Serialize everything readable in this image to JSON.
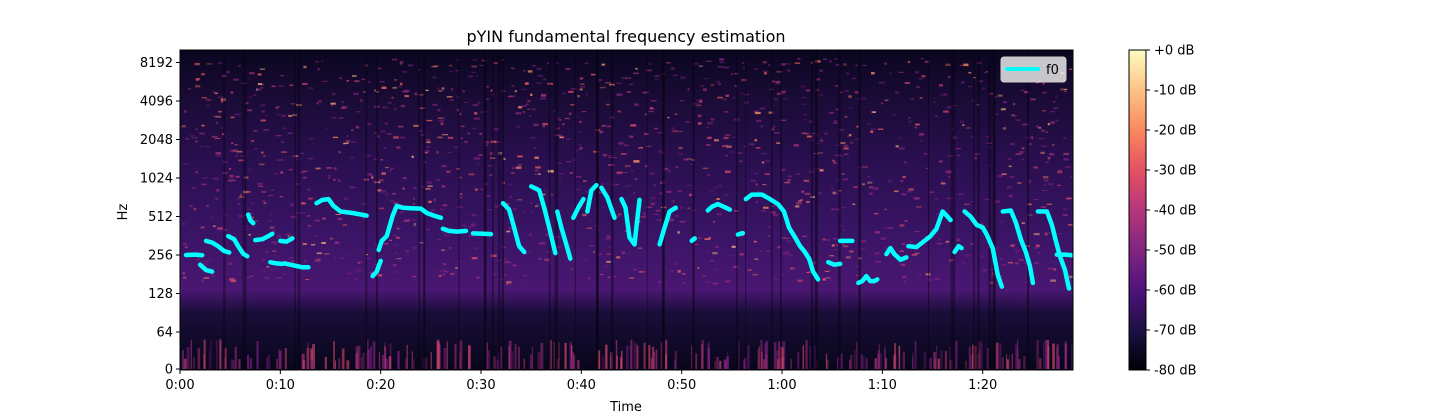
{
  "chart_data": {
    "type": "spectrogram",
    "title": "pYIN fundamental frequency estimation",
    "xlabel": "Time",
    "ylabel": "Hz",
    "xlim": [
      0,
      89
    ],
    "y_scale": "log (symmetric, linear near 0)",
    "x_ticks": [
      {
        "value": 0,
        "label": "0:00"
      },
      {
        "value": 10,
        "label": "0:10"
      },
      {
        "value": 20,
        "label": "0:20"
      },
      {
        "value": 30,
        "label": "0:30"
      },
      {
        "value": 40,
        "label": "0:40"
      },
      {
        "value": 50,
        "label": "0:50"
      },
      {
        "value": 60,
        "label": "1:00"
      },
      {
        "value": 70,
        "label": "1:10"
      },
      {
        "value": 80,
        "label": "1:20"
      }
    ],
    "y_ticks": [
      {
        "value": 0,
        "label": "0"
      },
      {
        "value": 64,
        "label": "64"
      },
      {
        "value": 128,
        "label": "128"
      },
      {
        "value": 256,
        "label": "256"
      },
      {
        "value": 512,
        "label": "512"
      },
      {
        "value": 1024,
        "label": "1024"
      },
      {
        "value": 2048,
        "label": "2048"
      },
      {
        "value": 4096,
        "label": "4096"
      },
      {
        "value": 8192,
        "label": "8192"
      }
    ],
    "colormap": "magma",
    "colorbar": {
      "range_db": [
        -80,
        0
      ],
      "ticks": [
        {
          "value": 0,
          "label": "+0 dB"
        },
        {
          "value": -10,
          "label": "-10 dB"
        },
        {
          "value": -20,
          "label": "-20 dB"
        },
        {
          "value": -30,
          "label": "-30 dB"
        },
        {
          "value": -40,
          "label": "-40 dB"
        },
        {
          "value": -50,
          "label": "-50 dB"
        },
        {
          "value": -60,
          "label": "-60 dB"
        },
        {
          "value": -70,
          "label": "-70 dB"
        },
        {
          "value": -80,
          "label": "-80 dB"
        }
      ]
    },
    "legend": {
      "placement": "top-right",
      "entries": [
        {
          "label": "f0",
          "color": "#00ffff"
        }
      ]
    },
    "series": [
      {
        "name": "f0",
        "color": "#00ffff",
        "segments": [
          [
            [
              0.6,
              256
            ],
            [
              1.5,
              258
            ],
            [
              2.2,
              255
            ]
          ],
          [
            [
              2.0,
              215
            ],
            [
              2.6,
              195
            ],
            [
              3.2,
              190
            ]
          ],
          [
            [
              2.6,
              330
            ],
            [
              3.2,
              320
            ],
            [
              3.8,
              300
            ],
            [
              4.4,
              275
            ],
            [
              4.9,
              268
            ]
          ],
          [
            [
              4.8,
              360
            ],
            [
              5.4,
              340
            ],
            [
              5.8,
              300
            ],
            [
              6.3,
              262
            ],
            [
              6.7,
              250
            ]
          ],
          [
            [
              6.8,
              530
            ],
            [
              7.0,
              480
            ],
            [
              7.3,
              455
            ]
          ],
          [
            [
              7.5,
              335
            ],
            [
              8.2,
              340
            ],
            [
              8.8,
              360
            ],
            [
              9.2,
              375
            ]
          ],
          [
            [
              9.0,
              225
            ],
            [
              9.6,
              220
            ],
            [
              10.2,
              218
            ]
          ],
          [
            [
              10.0,
              330
            ],
            [
              10.6,
              325
            ],
            [
              11.2,
              345
            ]
          ],
          [
            [
              10.4,
              220
            ],
            [
              11.0,
              215
            ],
            [
              11.6,
              210
            ],
            [
              12.2,
              205
            ],
            [
              12.8,
              205
            ]
          ],
          [
            [
              13.6,
              650
            ],
            [
              14.2,
              690
            ],
            [
              14.8,
              700
            ],
            [
              15.3,
              620
            ],
            [
              16.0,
              560
            ],
            [
              17.2,
              545
            ],
            [
              18.6,
              520
            ]
          ],
          [
            [
              19.2,
              175
            ],
            [
              19.6,
              190
            ],
            [
              20.0,
              230
            ]
          ],
          [
            [
              19.8,
              280
            ],
            [
              20.1,
              330
            ],
            [
              20.6,
              360
            ],
            [
              21.2,
              520
            ],
            [
              21.6,
              620
            ],
            [
              22.2,
              600
            ],
            [
              23.0,
              595
            ],
            [
              24.0,
              590
            ],
            [
              24.6,
              545
            ],
            [
              25.3,
              520
            ],
            [
              26.0,
              500
            ]
          ],
          [
            [
              26.2,
              410
            ],
            [
              26.8,
              395
            ],
            [
              27.6,
              390
            ],
            [
              28.5,
              395
            ]
          ],
          [
            [
              29.2,
              378
            ],
            [
              30.2,
              375
            ],
            [
              31.0,
              373
            ]
          ],
          [
            [
              32.2,
              650
            ],
            [
              32.8,
              580
            ],
            [
              33.3,
              420
            ],
            [
              33.8,
              300
            ],
            [
              34.3,
              270
            ]
          ],
          [
            [
              35.0,
              880
            ],
            [
              35.8,
              820
            ],
            [
              36.3,
              600
            ],
            [
              36.8,
              420
            ],
            [
              37.4,
              265
            ]
          ],
          [
            [
              37.6,
              560
            ],
            [
              38.0,
              420
            ],
            [
              38.5,
              310
            ],
            [
              38.9,
              240
            ]
          ],
          [
            [
              39.2,
              500
            ],
            [
              39.7,
              600
            ],
            [
              40.2,
              700
            ]
          ],
          [
            [
              40.6,
              560
            ],
            [
              41.0,
              820
            ],
            [
              41.5,
              900
            ]
          ],
          [
            [
              42.0,
              860
            ],
            [
              42.6,
              720
            ],
            [
              43.3,
              500
            ]
          ],
          [
            [
              44.0,
              700
            ],
            [
              44.4,
              600
            ],
            [
              44.8,
              350
            ],
            [
              45.3,
              310
            ],
            [
              45.8,
              690
            ]
          ],
          [
            [
              47.8,
              310
            ],
            [
              48.3,
              420
            ],
            [
              48.8,
              560
            ],
            [
              49.4,
              600
            ]
          ],
          [
            [
              51.0,
              330
            ],
            [
              51.3,
              345
            ]
          ],
          [
            [
              52.6,
              570
            ],
            [
              53.0,
              610
            ],
            [
              53.6,
              640
            ],
            [
              54.2,
              610
            ],
            [
              54.8,
              580
            ]
          ],
          [
            [
              55.6,
              370
            ],
            [
              56.1,
              380
            ]
          ],
          [
            [
              56.4,
              700
            ],
            [
              57.0,
              760
            ],
            [
              58.0,
              760
            ],
            [
              58.8,
              700
            ],
            [
              59.6,
              640
            ],
            [
              60.2,
              560
            ],
            [
              60.7,
              420
            ],
            [
              61.4,
              340
            ],
            [
              61.8,
              300
            ],
            [
              62.2,
              275
            ],
            [
              62.7,
              240
            ],
            [
              63.1,
              190
            ],
            [
              63.6,
              165
            ]
          ],
          [
            [
              64.6,
              225
            ],
            [
              65.2,
              215
            ],
            [
              65.8,
              218
            ]
          ],
          [
            [
              65.8,
              330
            ],
            [
              66.4,
              330
            ],
            [
              67.0,
              330
            ]
          ],
          [
            [
              67.6,
              155
            ],
            [
              68.0,
              160
            ],
            [
              68.4,
              175
            ],
            [
              68.8,
              160
            ],
            [
              69.2,
              160
            ],
            [
              69.5,
              165
            ]
          ],
          [
            [
              70.4,
              260
            ],
            [
              70.8,
              290
            ],
            [
              71.2,
              260
            ],
            [
              71.8,
              235
            ],
            [
              72.4,
              245
            ]
          ],
          [
            [
              72.6,
              300
            ],
            [
              73.4,
              295
            ],
            [
              74.2,
              330
            ],
            [
              74.8,
              360
            ],
            [
              75.4,
              410
            ],
            [
              76.0,
              560
            ],
            [
              76.4,
              520
            ],
            [
              76.8,
              480
            ]
          ],
          [
            [
              77.2,
              270
            ],
            [
              77.6,
              300
            ],
            [
              77.9,
              290
            ]
          ],
          [
            [
              78.2,
              560
            ],
            [
              78.8,
              510
            ],
            [
              79.4,
              440
            ],
            [
              80.0,
              420
            ],
            [
              80.4,
              370
            ],
            [
              81.0,
              290
            ],
            [
              81.5,
              180
            ],
            [
              81.9,
              145
            ]
          ],
          [
            [
              82.0,
              560
            ],
            [
              82.8,
              570
            ],
            [
              83.3,
              460
            ],
            [
              83.8,
              340
            ],
            [
              84.3,
              270
            ],
            [
              84.7,
              210
            ],
            [
              85.0,
              155
            ]
          ],
          [
            [
              85.5,
              560
            ],
            [
              86.4,
              560
            ],
            [
              86.9,
              440
            ],
            [
              87.3,
              330
            ],
            [
              87.7,
              250
            ],
            [
              88.2,
              195
            ],
            [
              88.6,
              140
            ]
          ],
          [
            [
              87.4,
              258
            ],
            [
              88.2,
              258
            ],
            [
              88.9,
              255
            ]
          ]
        ]
      }
    ]
  }
}
